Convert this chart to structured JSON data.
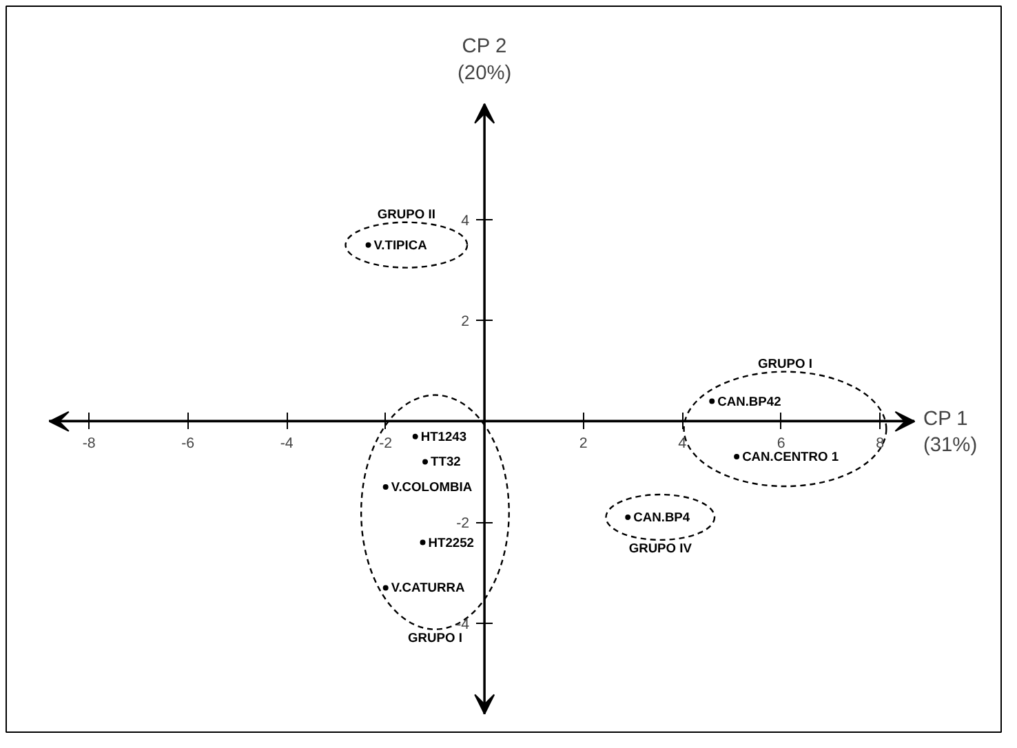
{
  "chart_data": {
    "type": "scatter",
    "xlabel": "CP 1 (31%)",
    "ylabel": "CP 2 (20%)",
    "marker": "circle",
    "xlim": [
      -8.8,
      8.7
    ],
    "ylim": [
      -5.8,
      6.3
    ],
    "xticks": [
      -8,
      -6,
      -4,
      -2,
      2,
      4,
      6,
      8
    ],
    "yticks": [
      -4,
      -2,
      2,
      4
    ],
    "series": [
      {
        "name": "GRUPO II",
        "color": "#000000",
        "x": [
          -2.35
        ],
        "values": [
          3.5
        ],
        "value_labels": [
          "V.TIPICA"
        ]
      },
      {
        "name": "GRUPO I",
        "color": "#000000",
        "x": [
          4.6,
          5.1
        ],
        "values": [
          0.4,
          -0.7
        ],
        "value_labels": [
          "CAN.BP42",
          "CAN.CENTRO 1"
        ]
      },
      {
        "name": "GRUPO IV",
        "color": "#000000",
        "x": [
          2.9
        ],
        "values": [
          -1.9
        ],
        "value_labels": [
          "CAN.BP4"
        ]
      },
      {
        "name": "GRUPO I",
        "color": "#000000",
        "x": [
          -1.4,
          -1.2,
          -2.0,
          -1.25,
          -2.0
        ],
        "values": [
          -0.3,
          -0.8,
          -1.3,
          -2.4,
          -3.3
        ],
        "value_labels": [
          "HT1243",
          "TT32",
          "V.COLOMBIA",
          "HT2252",
          "V.CATURRA"
        ]
      }
    ]
  }
}
